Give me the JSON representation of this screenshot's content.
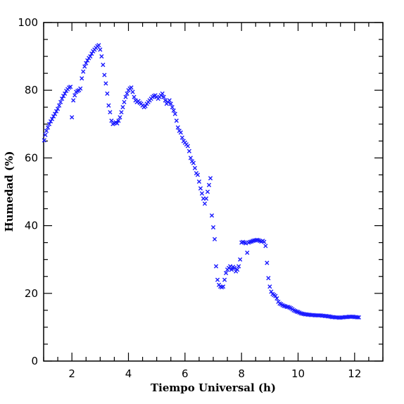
{
  "chart_data": {
    "type": "scatter",
    "title": "",
    "xlabel": "Tiempo Universal (h)",
    "ylabel": "Humedad (%)",
    "xlim": [
      1,
      13
    ],
    "ylim": [
      0,
      100
    ],
    "xticks": [
      2,
      4,
      6,
      8,
      10,
      12
    ],
    "yticks": [
      0,
      20,
      40,
      60,
      80,
      100
    ],
    "x_tick_labels": [
      "2",
      "4",
      "6",
      "8",
      "10",
      "12"
    ],
    "y_tick_labels": [
      "0",
      "20",
      "40",
      "60",
      "80",
      "100"
    ],
    "grid": false,
    "marker": "x",
    "colors": {
      "points": "#1a1aff",
      "axes": "#000000"
    },
    "points": [
      [
        1.02,
        65.2
      ],
      [
        1.06,
        66.8
      ],
      [
        1.1,
        68.0
      ],
      [
        1.15,
        69.0
      ],
      [
        1.2,
        70.0
      ],
      [
        1.25,
        70.8
      ],
      [
        1.3,
        71.5
      ],
      [
        1.35,
        72.3
      ],
      [
        1.4,
        73.0
      ],
      [
        1.45,
        73.8
      ],
      [
        1.5,
        74.5
      ],
      [
        1.55,
        75.5
      ],
      [
        1.6,
        76.5
      ],
      [
        1.65,
        77.5
      ],
      [
        1.7,
        78.3
      ],
      [
        1.75,
        79.0
      ],
      [
        1.8,
        79.8
      ],
      [
        1.85,
        80.3
      ],
      [
        1.9,
        80.8
      ],
      [
        1.95,
        81.0
      ],
      [
        2.0,
        72.0
      ],
      [
        2.05,
        77.0
      ],
      [
        2.1,
        78.5
      ],
      [
        2.15,
        79.5
      ],
      [
        2.2,
        79.8
      ],
      [
        2.25,
        80.0
      ],
      [
        2.3,
        80.5
      ],
      [
        2.35,
        83.5
      ],
      [
        2.4,
        85.5
      ],
      [
        2.45,
        87.0
      ],
      [
        2.5,
        88.0
      ],
      [
        2.55,
        88.8
      ],
      [
        2.6,
        89.5
      ],
      [
        2.65,
        90.0
      ],
      [
        2.7,
        90.8
      ],
      [
        2.75,
        91.5
      ],
      [
        2.8,
        92.0
      ],
      [
        2.85,
        92.5
      ],
      [
        2.9,
        93.0
      ],
      [
        2.95,
        93.3
      ],
      [
        3.0,
        92.0
      ],
      [
        3.05,
        90.0
      ],
      [
        3.1,
        87.5
      ],
      [
        3.15,
        84.5
      ],
      [
        3.2,
        82.0
      ],
      [
        3.25,
        79.0
      ],
      [
        3.3,
        75.5
      ],
      [
        3.35,
        73.5
      ],
      [
        3.4,
        71.0
      ],
      [
        3.45,
        70.0
      ],
      [
        3.5,
        70.3
      ],
      [
        3.55,
        70.5
      ],
      [
        3.6,
        70.2
      ],
      [
        3.65,
        71.0
      ],
      [
        3.7,
        72.0
      ],
      [
        3.75,
        73.5
      ],
      [
        3.8,
        75.0
      ],
      [
        3.85,
        76.5
      ],
      [
        3.9,
        78.0
      ],
      [
        3.95,
        79.0
      ],
      [
        4.0,
        80.0
      ],
      [
        4.05,
        80.5
      ],
      [
        4.1,
        80.8
      ],
      [
        4.15,
        79.5
      ],
      [
        4.2,
        78.0
      ],
      [
        4.25,
        77.0
      ],
      [
        4.3,
        76.5
      ],
      [
        4.35,
        76.8
      ],
      [
        4.4,
        76.3
      ],
      [
        4.45,
        76.0
      ],
      [
        4.5,
        75.5
      ],
      [
        4.55,
        75.0
      ],
      [
        4.6,
        75.3
      ],
      [
        4.65,
        76.0
      ],
      [
        4.7,
        76.5
      ],
      [
        4.75,
        77.0
      ],
      [
        4.8,
        77.5
      ],
      [
        4.85,
        78.0
      ],
      [
        4.9,
        78.3
      ],
      [
        4.95,
        78.5
      ],
      [
        5.0,
        78.0
      ],
      [
        5.05,
        77.5
      ],
      [
        5.1,
        78.0
      ],
      [
        5.15,
        78.5
      ],
      [
        5.2,
        79.0
      ],
      [
        5.25,
        78.0
      ],
      [
        5.3,
        77.0
      ],
      [
        5.35,
        76.0
      ],
      [
        5.4,
        76.5
      ],
      [
        5.45,
        77.0
      ],
      [
        5.5,
        76.0
      ],
      [
        5.55,
        75.0
      ],
      [
        5.6,
        74.0
      ],
      [
        5.65,
        73.0
      ],
      [
        5.7,
        71.0
      ],
      [
        5.75,
        69.0
      ],
      [
        5.8,
        68.0
      ],
      [
        5.85,
        67.5
      ],
      [
        5.9,
        66.0
      ],
      [
        5.95,
        65.0
      ],
      [
        6.0,
        64.5
      ],
      [
        6.05,
        64.0
      ],
      [
        6.1,
        63.5
      ],
      [
        6.15,
        62.0
      ],
      [
        6.2,
        60.0
      ],
      [
        6.25,
        59.0
      ],
      [
        6.3,
        58.5
      ],
      [
        6.35,
        57.0
      ],
      [
        6.4,
        55.5
      ],
      [
        6.45,
        55.0
      ],
      [
        6.5,
        53.0
      ],
      [
        6.55,
        51.0
      ],
      [
        6.6,
        49.5
      ],
      [
        6.65,
        48.0
      ],
      [
        6.7,
        46.5
      ],
      [
        6.75,
        48.0
      ],
      [
        6.8,
        50.0
      ],
      [
        6.85,
        52.0
      ],
      [
        6.9,
        54.0
      ],
      [
        6.95,
        43.0
      ],
      [
        7.0,
        39.5
      ],
      [
        7.05,
        36.0
      ],
      [
        7.1,
        28.0
      ],
      [
        7.15,
        24.0
      ],
      [
        7.2,
        22.5
      ],
      [
        7.25,
        22.0
      ],
      [
        7.3,
        21.8
      ],
      [
        7.35,
        22.0
      ],
      [
        7.4,
        24.0
      ],
      [
        7.45,
        26.0
      ],
      [
        7.5,
        27.0
      ],
      [
        7.55,
        27.5
      ],
      [
        7.6,
        28.0
      ],
      [
        7.65,
        27.0
      ],
      [
        7.7,
        27.8
      ],
      [
        7.75,
        27.5
      ],
      [
        7.8,
        26.5
      ],
      [
        7.85,
        27.0
      ],
      [
        7.9,
        28.0
      ],
      [
        7.95,
        30.0
      ],
      [
        8.0,
        35.0
      ],
      [
        8.05,
        35.2
      ],
      [
        8.1,
        35.0
      ],
      [
        8.15,
        34.8
      ],
      [
        8.2,
        32.0
      ],
      [
        8.25,
        35.0
      ],
      [
        8.3,
        35.2
      ],
      [
        8.35,
        35.3
      ],
      [
        8.4,
        35.5
      ],
      [
        8.45,
        35.6
      ],
      [
        8.5,
        35.7
      ],
      [
        8.55,
        35.8
      ],
      [
        8.6,
        35.7
      ],
      [
        8.65,
        35.5
      ],
      [
        8.7,
        35.3
      ],
      [
        8.75,
        35.5
      ],
      [
        8.8,
        35.2
      ],
      [
        8.85,
        34.0
      ],
      [
        8.9,
        29.0
      ],
      [
        8.95,
        24.5
      ],
      [
        9.0,
        22.0
      ],
      [
        9.05,
        20.5
      ],
      [
        9.1,
        19.8
      ],
      [
        9.15,
        19.5
      ],
      [
        9.2,
        19.2
      ],
      [
        9.25,
        18.5
      ],
      [
        9.3,
        17.5
      ],
      [
        9.35,
        17.0
      ],
      [
        9.4,
        16.8
      ],
      [
        9.45,
        16.5
      ],
      [
        9.5,
        16.3
      ],
      [
        9.55,
        16.2
      ],
      [
        9.6,
        16.0
      ],
      [
        9.65,
        16.0
      ],
      [
        9.7,
        15.8
      ],
      [
        9.75,
        15.6
      ],
      [
        9.8,
        15.3
      ],
      [
        9.85,
        15.0
      ],
      [
        9.9,
        14.8
      ],
      [
        9.95,
        14.6
      ],
      [
        10.0,
        14.5
      ],
      [
        10.05,
        14.3
      ],
      [
        10.1,
        14.1
      ],
      [
        10.15,
        14.0
      ],
      [
        10.2,
        13.9
      ],
      [
        10.25,
        13.8
      ],
      [
        10.3,
        13.8
      ],
      [
        10.35,
        13.7
      ],
      [
        10.4,
        13.7
      ],
      [
        10.45,
        13.6
      ],
      [
        10.5,
        13.6
      ],
      [
        10.55,
        13.6
      ],
      [
        10.6,
        13.5
      ],
      [
        10.65,
        13.5
      ],
      [
        10.7,
        13.5
      ],
      [
        10.75,
        13.5
      ],
      [
        10.8,
        13.5
      ],
      [
        10.85,
        13.4
      ],
      [
        10.9,
        13.4
      ],
      [
        10.95,
        13.3
      ],
      [
        11.0,
        13.3
      ],
      [
        11.05,
        13.2
      ],
      [
        11.1,
        13.2
      ],
      [
        11.15,
        13.1
      ],
      [
        11.2,
        13.0
      ],
      [
        11.25,
        13.0
      ],
      [
        11.3,
        12.9
      ],
      [
        11.35,
        12.9
      ],
      [
        11.4,
        12.9
      ],
      [
        11.45,
        12.8
      ],
      [
        11.5,
        12.8
      ],
      [
        11.55,
        12.9
      ],
      [
        11.6,
        12.9
      ],
      [
        11.65,
        13.0
      ],
      [
        11.7,
        13.0
      ],
      [
        11.75,
        13.0
      ],
      [
        11.8,
        13.1
      ],
      [
        11.85,
        13.1
      ],
      [
        11.9,
        13.1
      ],
      [
        11.95,
        13.1
      ],
      [
        12.0,
        13.0
      ],
      [
        12.05,
        13.0
      ],
      [
        12.1,
        12.9
      ],
      [
        12.15,
        12.9
      ]
    ]
  }
}
